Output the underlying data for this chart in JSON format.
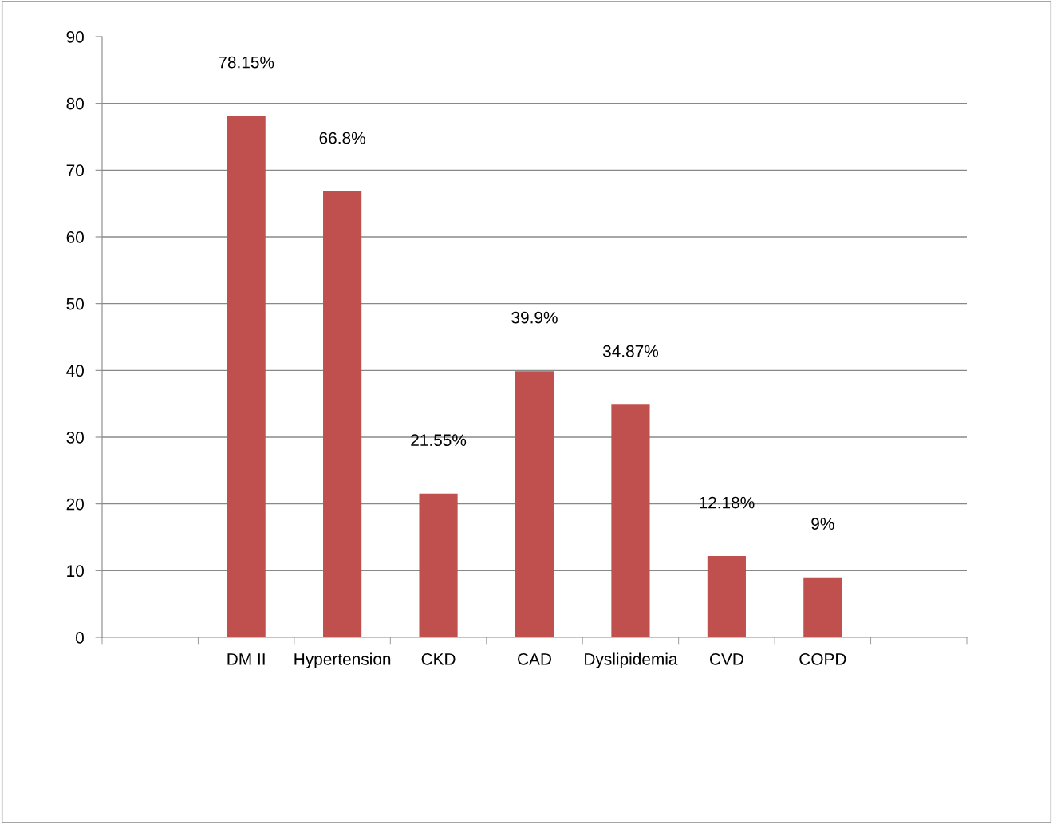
{
  "chart_data": {
    "type": "bar",
    "categories": [
      null,
      "DM II",
      "Hypertension",
      "CKD",
      "CAD",
      "Dyslipidemia",
      "CVD",
      "COPD",
      null
    ],
    "values": [
      null,
      78.15,
      66.8,
      21.55,
      39.9,
      34.87,
      12.18,
      9,
      null
    ],
    "value_labels": [
      null,
      "78.15%",
      "66.8%",
      "21.55%",
      "39.9%",
      "34.87%",
      "12.18%",
      "9%",
      null
    ],
    "color": "#c0504d",
    "ylim": [
      0,
      90
    ],
    "yticks": [
      0,
      10,
      20,
      30,
      40,
      50,
      60,
      70,
      80,
      90
    ],
    "grid": "y",
    "legend": false
  }
}
